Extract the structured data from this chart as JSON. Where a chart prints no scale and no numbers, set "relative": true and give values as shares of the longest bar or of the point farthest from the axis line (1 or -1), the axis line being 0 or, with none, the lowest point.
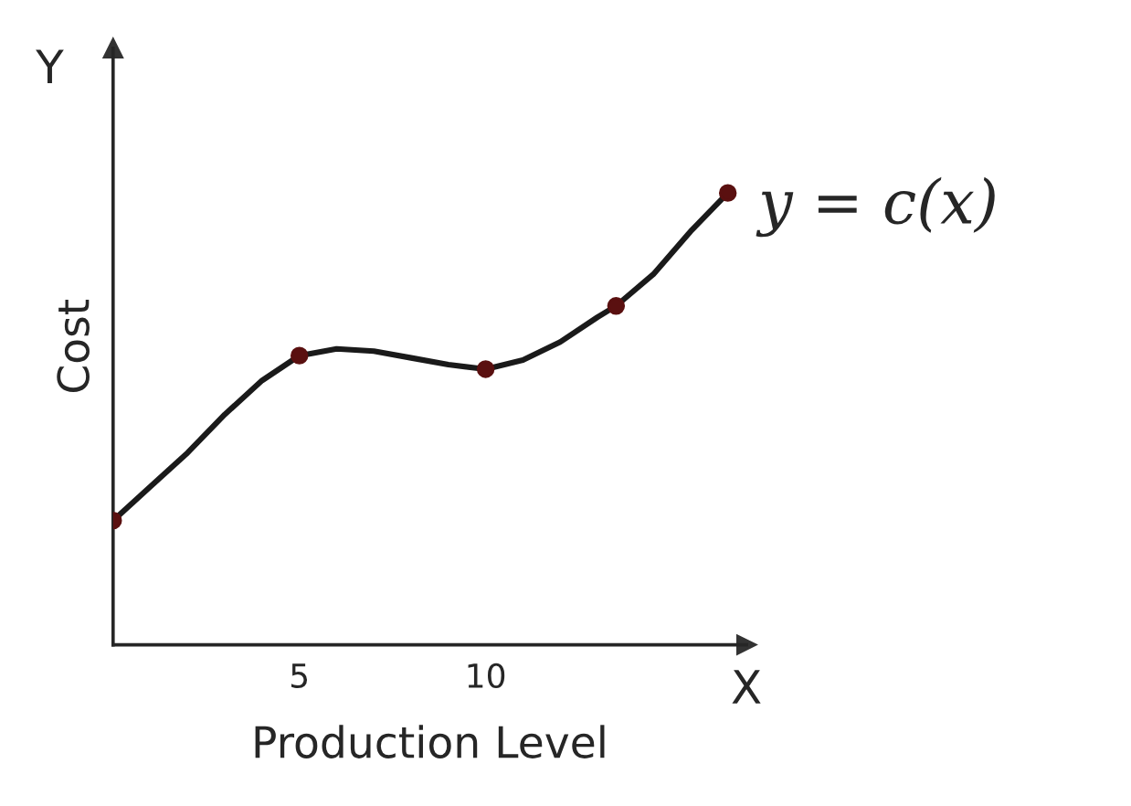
{
  "chart_data": {
    "type": "line",
    "relative": true,
    "xlabel": "Production Level",
    "ylabel": "Cost",
    "series": [
      {
        "color": "#1a1a1a",
        "x": [
          0,
          1,
          2,
          3,
          4,
          5,
          6,
          7,
          8,
          9,
          10,
          11,
          12,
          13,
          13.5,
          14.5,
          15.5,
          16.5
        ],
        "values": [
          0.275,
          0.35,
          0.425,
          0.51,
          0.585,
          0.64,
          0.655,
          0.65,
          0.635,
          0.62,
          0.61,
          0.63,
          0.67,
          0.725,
          0.75,
          0.82,
          0.915,
          1
        ]
      },
      {
        "type": "scatter",
        "marker": "circle",
        "color": "#5a1010",
        "x": [
          0,
          5,
          10,
          13.5,
          16.5
        ],
        "values": [
          0.275,
          0.64,
          0.61,
          0.75,
          1
        ]
      }
    ],
    "xlim": [
      0,
      17
    ],
    "xticks": [
      5,
      10
    ],
    "line_style": "solid",
    "grid": false,
    "annotations": [
      {
        "text": "y = c(x)",
        "x": 16.5,
        "y": 1
      },
      "Y",
      "X"
    ]
  }
}
